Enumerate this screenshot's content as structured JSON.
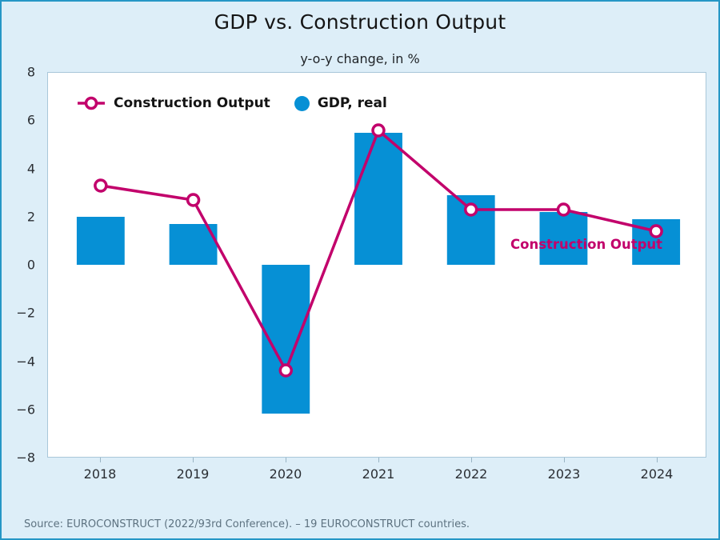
{
  "colors": {
    "background": "#ddeef8",
    "frame_border": "#2697c6",
    "plot_background": "#ffffff",
    "plot_border": "#a9c7d9",
    "bar_blue": "#0690d5",
    "line_magenta": "#c2006b",
    "axis_text": "#2a2e33",
    "source_text": "#5d7280"
  },
  "chart_data": {
    "type": "bar+line",
    "title": "GDP vs. Construction Output",
    "subtitle": "y-o-y change, in %",
    "categories": [
      "2018",
      "2019",
      "2020",
      "2021",
      "2022",
      "2023",
      "2024"
    ],
    "series": [
      {
        "name": "GDP, real",
        "type": "bar",
        "color": "#0690d5",
        "values": [
          2.0,
          1.7,
          -6.2,
          5.5,
          2.9,
          2.2,
          1.9
        ]
      },
      {
        "name": "Construction Output",
        "type": "line",
        "color": "#c2006b",
        "values": [
          3.3,
          2.7,
          -4.4,
          5.6,
          2.3,
          2.3,
          1.4
        ]
      }
    ],
    "ylim": [
      -8,
      8
    ],
    "ytick_labels": [
      "8",
      "6",
      "4",
      "2",
      "0",
      "−2",
      "−4",
      "−6",
      "−8"
    ],
    "grid": false,
    "legend_position": "top-left-inside"
  },
  "annotation": {
    "text": "Construction Output",
    "color": "#c2006b"
  },
  "source": {
    "text": "Source: EUROCONSTRUCT (2022/93rd Conference). – 19 EUROCONSTRUCT countries."
  }
}
